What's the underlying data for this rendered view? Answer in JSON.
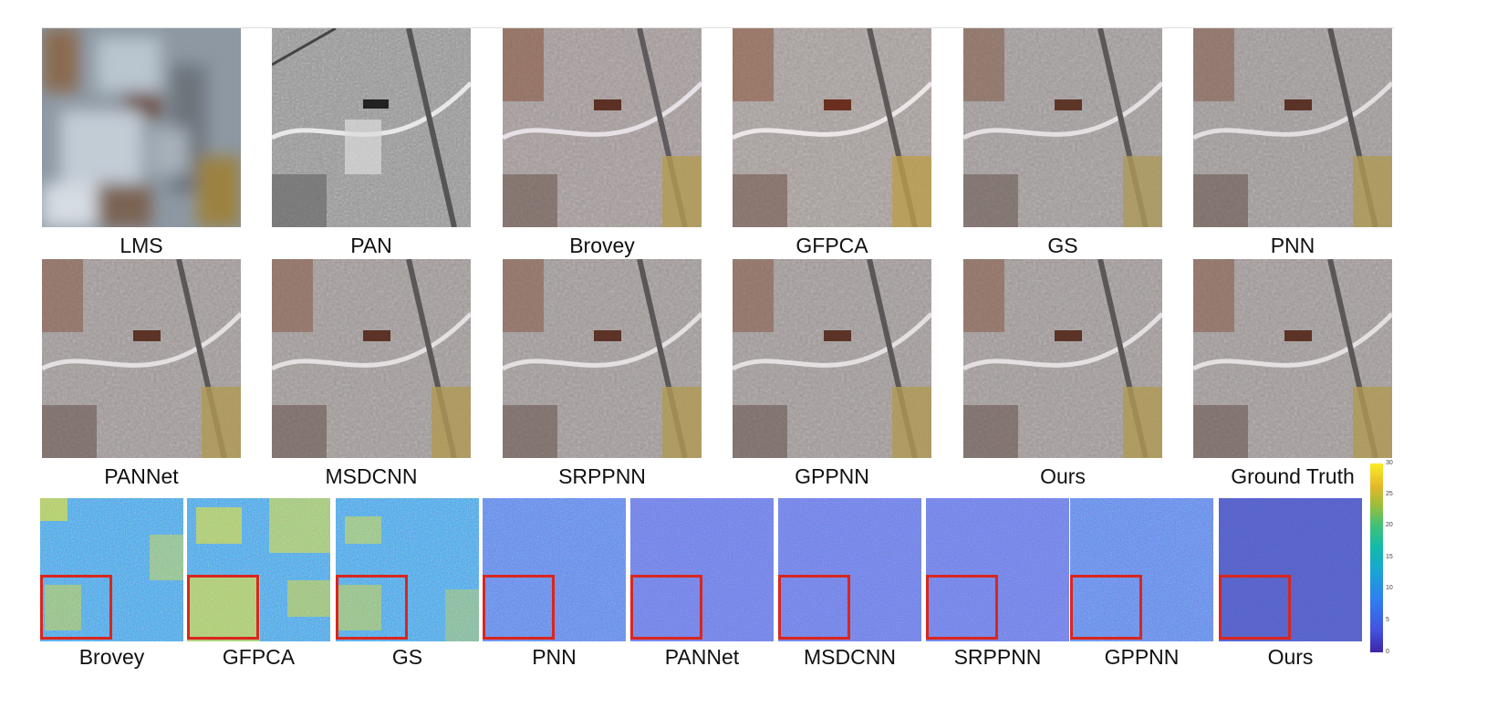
{
  "figure": {
    "top_rows": [
      {
        "labels": [
          "LMS",
          "PAN",
          "Brovey",
          "GFPCA",
          "GS",
          "PNN"
        ]
      },
      {
        "labels": [
          "PANNet",
          "MSDCNN",
          "SRPPNN",
          "GPPNN",
          "Ours",
          "Ground Truth"
        ]
      }
    ],
    "error_row": {
      "labels": [
        "Brovey",
        "GFPCA",
        "GS",
        "PNN",
        "PANNet",
        "MSDCNN",
        "SRPPNN",
        "GPPNN",
        "Ours"
      ]
    },
    "colorbar": {
      "ticks": [
        "30",
        "25",
        "20",
        "15",
        "10",
        "5",
        "0"
      ]
    }
  }
}
